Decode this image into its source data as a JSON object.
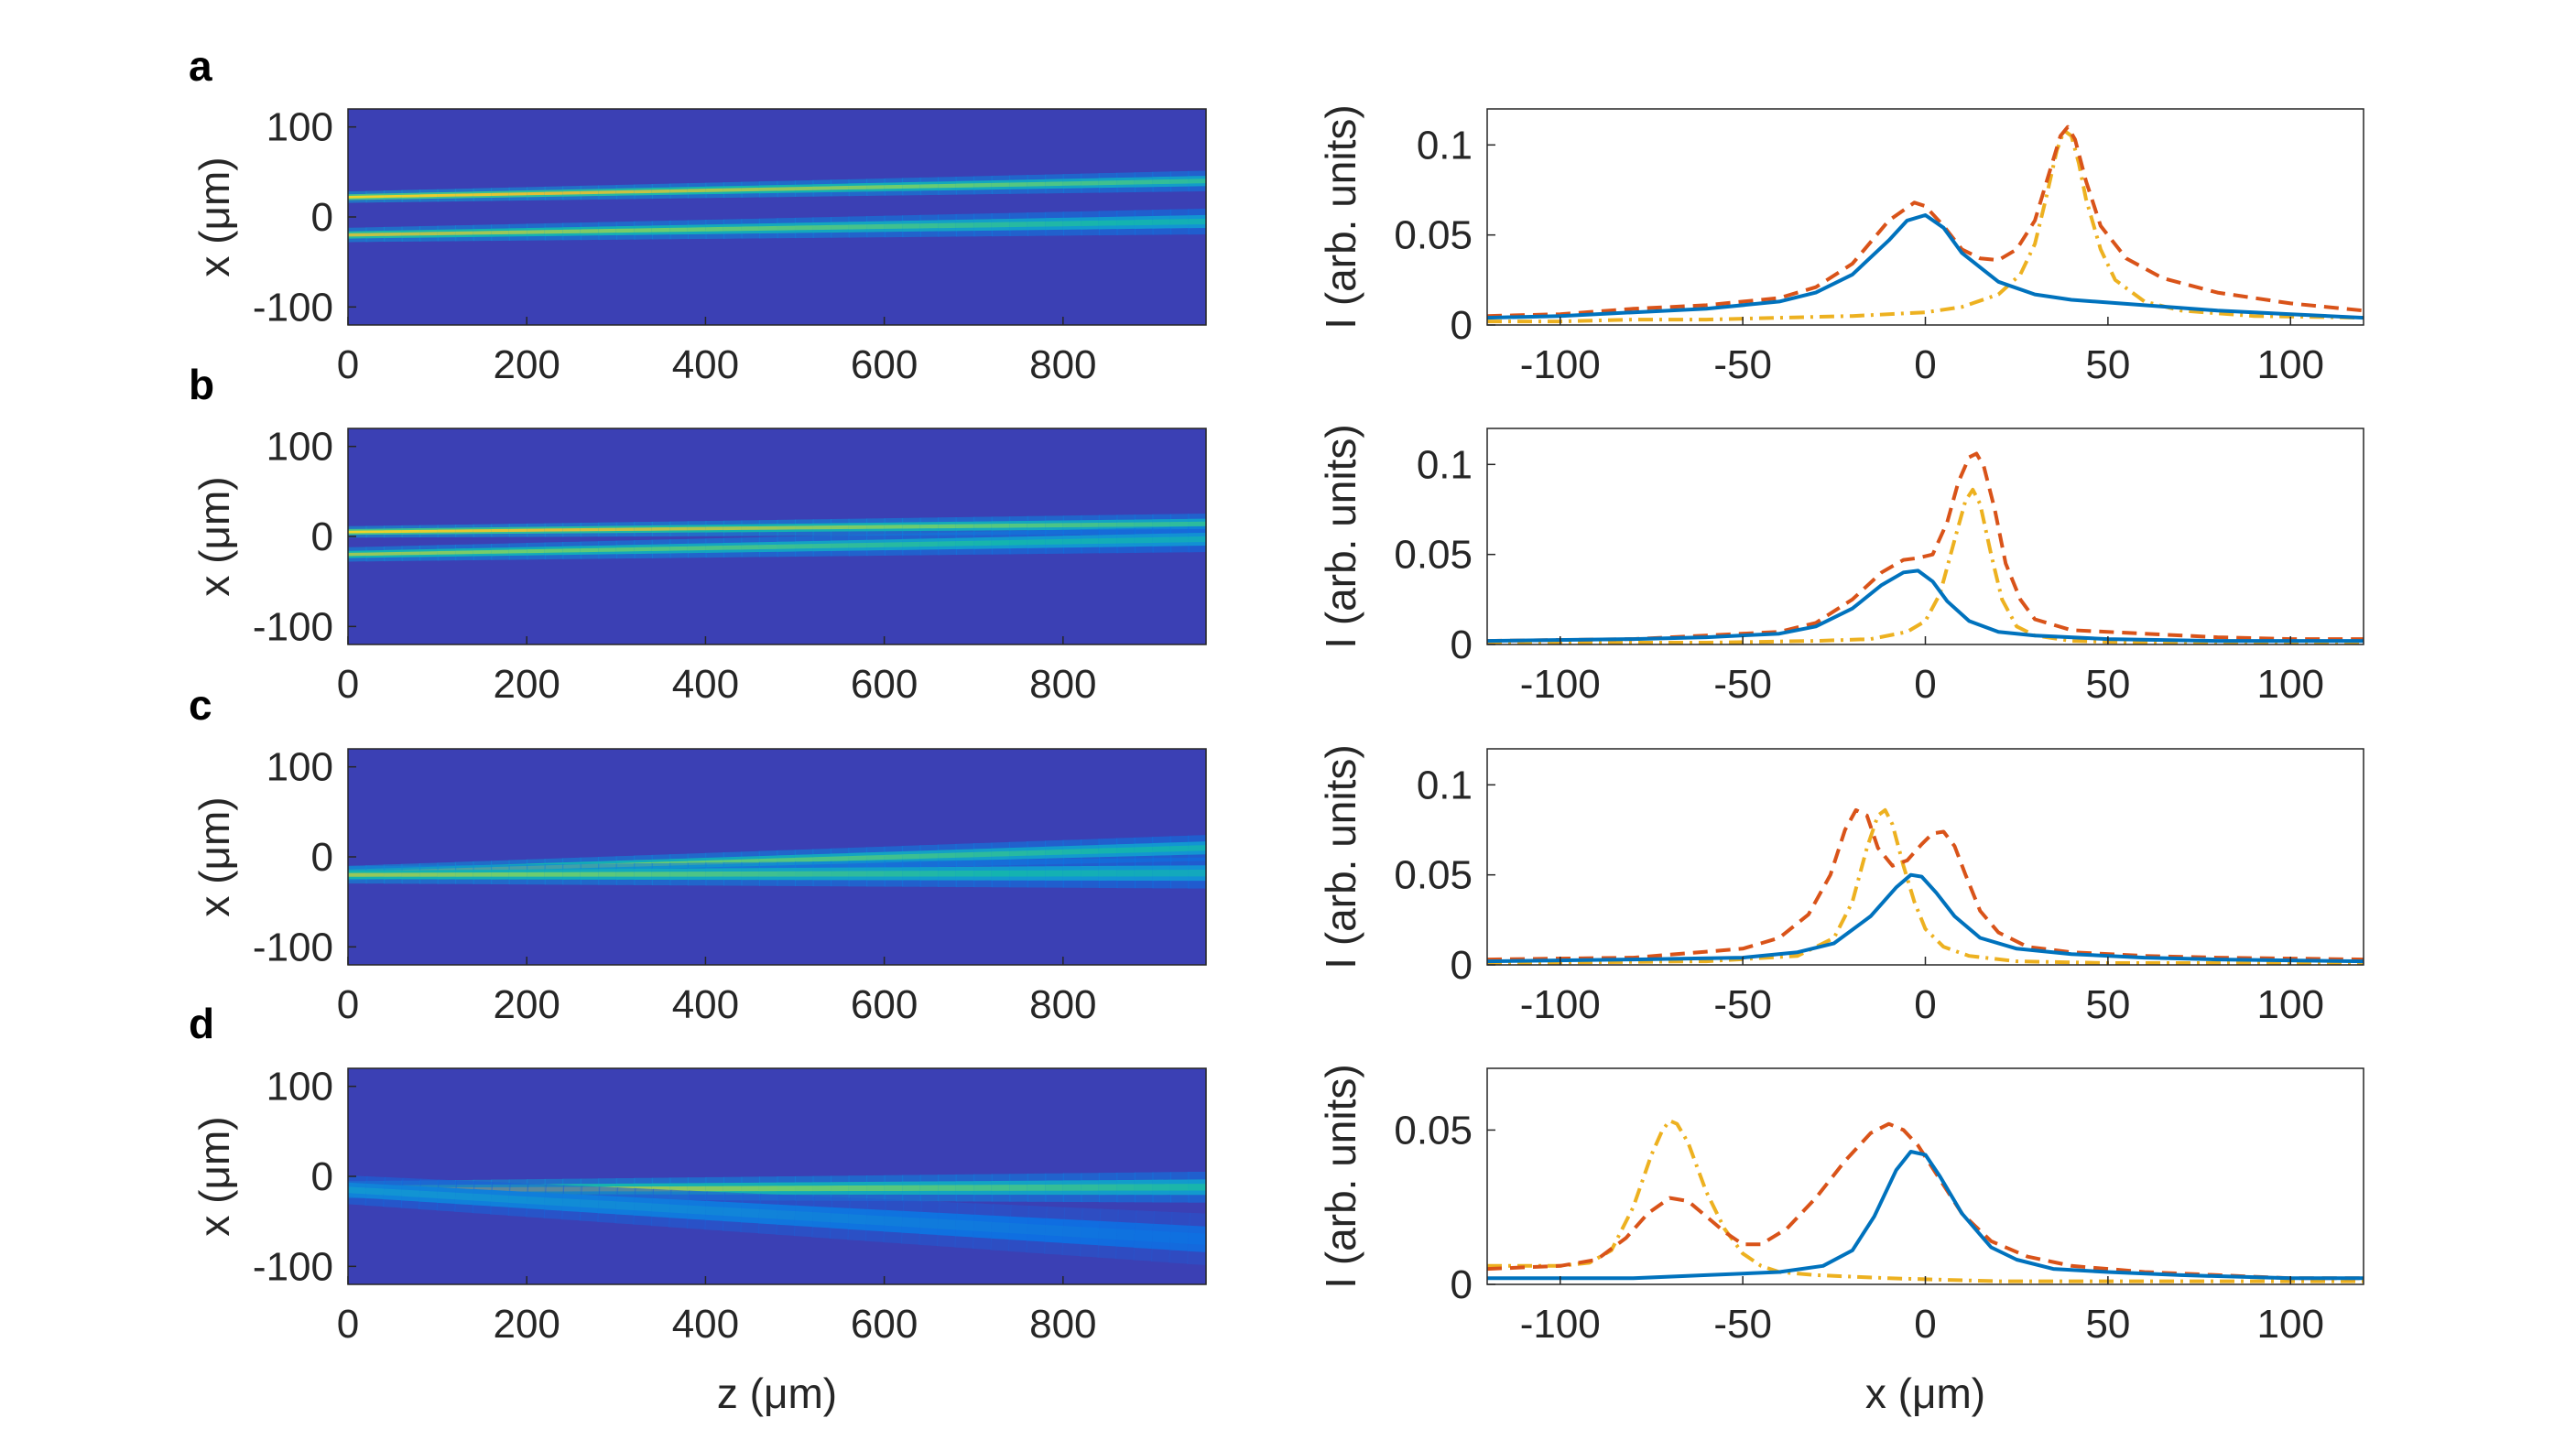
{
  "panels": [
    {
      "letter": "a",
      "heatmap": {
        "xlabel": "",
        "ylabel": "x (μm)",
        "xticks": [
          "0",
          "200",
          "400",
          "600",
          "800"
        ],
        "xtick_vals": [
          0,
          200,
          400,
          600,
          800
        ],
        "yticks": [
          "100",
          "0",
          "-100"
        ],
        "ytick_vals": [
          100,
          0,
          -100
        ],
        "xlim": [
          0,
          960
        ],
        "ylim": [
          -120,
          120
        ],
        "beams": [
          {
            "x_start": 22,
            "x_end": 40,
            "width": 4,
            "peak": 0.95
          },
          {
            "x_start": -20,
            "x_end": -5,
            "width": 5,
            "peak": 0.85
          }
        ]
      },
      "profile": {
        "xlabel": "",
        "ylabel": "I (arb. units)",
        "xticks": [
          "-100",
          "-50",
          "0",
          "50",
          "100"
        ],
        "xtick_vals": [
          -100,
          -50,
          0,
          50,
          100
        ],
        "yticks": [
          "0",
          "0.05",
          "0.1"
        ],
        "ytick_vals": [
          0,
          0.05,
          0.1
        ],
        "xlim": [
          -120,
          120
        ],
        "ylim": [
          0,
          0.12
        ]
      }
    },
    {
      "letter": "b",
      "heatmap": {
        "xlabel": "",
        "ylabel": "x (μm)",
        "xticks": [
          "0",
          "200",
          "400",
          "600",
          "800"
        ],
        "xtick_vals": [
          0,
          200,
          400,
          600,
          800
        ],
        "yticks": [
          "100",
          "0",
          "-100"
        ],
        "ytick_vals": [
          100,
          0,
          -100
        ],
        "xlim": [
          0,
          960
        ],
        "ylim": [
          -120,
          120
        ],
        "beams": [
          {
            "x_start": 5,
            "x_end": 14,
            "width": 4,
            "peak": 0.95
          },
          {
            "x_start": -20,
            "x_end": -3,
            "width": 5,
            "peak": 0.8
          }
        ]
      },
      "profile": {
        "xlabel": "",
        "ylabel": "I (arb. units)",
        "xticks": [
          "-100",
          "-50",
          "0",
          "50",
          "100"
        ],
        "xtick_vals": [
          -100,
          -50,
          0,
          50,
          100
        ],
        "yticks": [
          "0",
          "0.05",
          "0.1"
        ],
        "ytick_vals": [
          0,
          0.05,
          0.1
        ],
        "xlim": [
          -120,
          120
        ],
        "ylim": [
          0,
          0.12
        ]
      }
    },
    {
      "letter": "c",
      "heatmap": {
        "xlabel": "",
        "ylabel": "x (μm)",
        "xticks": [
          "0",
          "200",
          "400",
          "600",
          "800"
        ],
        "xtick_vals": [
          0,
          200,
          400,
          600,
          800
        ],
        "yticks": [
          "100",
          "0",
          "-100"
        ],
        "ytick_vals": [
          100,
          0,
          -100
        ],
        "xlim": [
          0,
          960
        ],
        "ylim": [
          -120,
          120
        ],
        "beams": [
          {
            "x_start": -18,
            "x_end": 10,
            "width": 5,
            "peak": 0.85
          },
          {
            "x_start": -20,
            "x_end": -18,
            "width": 6,
            "peak": 0.8
          }
        ]
      },
      "profile": {
        "xlabel": "",
        "ylabel": "I (arb. units)",
        "xticks": [
          "-100",
          "-50",
          "0",
          "50",
          "100"
        ],
        "xtick_vals": [
          -100,
          -50,
          0,
          50,
          100
        ],
        "yticks": [
          "0",
          "0.05",
          "0.1"
        ],
        "ytick_vals": [
          0,
          0.05,
          0.1
        ],
        "xlim": [
          -120,
          120
        ],
        "ylim": [
          0,
          0.12
        ]
      }
    },
    {
      "letter": "d",
      "heatmap": {
        "xlabel": "z (μm)",
        "ylabel": "x (μm)",
        "xticks": [
          "0",
          "200",
          "400",
          "600",
          "800"
        ],
        "xtick_vals": [
          0,
          200,
          400,
          600,
          800
        ],
        "yticks": [
          "100",
          "0",
          "-100"
        ],
        "ytick_vals": [
          100,
          0,
          -100
        ],
        "xlim": [
          0,
          960
        ],
        "ylim": [
          -120,
          120
        ],
        "beams": [
          {
            "x_start": -15,
            "x_end": -12,
            "width": 6,
            "peak": 0.9
          },
          {
            "x_start": -15,
            "x_end": -70,
            "width": 10,
            "peak": 0.45
          }
        ]
      },
      "profile": {
        "xlabel": "x (μm)",
        "ylabel": "I (arb. units)",
        "xticks": [
          "-100",
          "-50",
          "0",
          "50",
          "100"
        ],
        "xtick_vals": [
          -100,
          -50,
          0,
          50,
          100
        ],
        "yticks": [
          "0",
          "0.05"
        ],
        "ytick_vals": [
          0,
          0.05
        ],
        "xlim": [
          -120,
          120
        ],
        "ylim": [
          0,
          0.07
        ]
      }
    }
  ],
  "colors": {
    "blue": "#0072BD",
    "orange": "#D95319",
    "yellow": "#EDB120",
    "heat_bg": "#3B40B4",
    "axis": "#262626"
  },
  "chart_data": [
    {
      "type": "line",
      "panel": "a",
      "xlim": [
        -120,
        120
      ],
      "ylim": [
        0,
        0.12
      ],
      "xlabel": "",
      "ylabel": "I (arb. units)",
      "series": [
        {
          "style": "solid",
          "color": "#0072BD",
          "x": [
            -120,
            -100,
            -80,
            -60,
            -40,
            -30,
            -20,
            -10,
            -5,
            0,
            5,
            10,
            20,
            30,
            40,
            60,
            80,
            100,
            120
          ],
          "y": [
            0.004,
            0.005,
            0.007,
            0.009,
            0.013,
            0.018,
            0.028,
            0.047,
            0.058,
            0.061,
            0.054,
            0.04,
            0.024,
            0.017,
            0.014,
            0.011,
            0.008,
            0.006,
            0.004
          ]
        },
        {
          "style": "dashed",
          "color": "#D95319",
          "x": [
            -120,
            -100,
            -80,
            -60,
            -40,
            -30,
            -20,
            -10,
            -3,
            0,
            5,
            10,
            15,
            20,
            25,
            30,
            34,
            37,
            39,
            41,
            44,
            48,
            55,
            65,
            80,
            100,
            120
          ],
          "y": [
            0.005,
            0.006,
            0.009,
            0.011,
            0.015,
            0.021,
            0.034,
            0.058,
            0.068,
            0.066,
            0.055,
            0.042,
            0.037,
            0.036,
            0.042,
            0.058,
            0.085,
            0.105,
            0.11,
            0.103,
            0.08,
            0.055,
            0.037,
            0.026,
            0.018,
            0.012,
            0.008
          ]
        },
        {
          "style": "dashdot",
          "color": "#EDB120",
          "x": [
            -120,
            -100,
            -80,
            -60,
            -40,
            -20,
            0,
            10,
            20,
            26,
            30,
            33,
            36,
            38,
            40,
            42,
            44,
            48,
            52,
            60,
            70,
            90,
            120
          ],
          "y": [
            0.002,
            0.002,
            0.003,
            0.003,
            0.004,
            0.005,
            0.007,
            0.01,
            0.017,
            0.028,
            0.045,
            0.07,
            0.097,
            0.108,
            0.105,
            0.09,
            0.07,
            0.042,
            0.025,
            0.013,
            0.008,
            0.005,
            0.004
          ]
        }
      ]
    },
    {
      "type": "line",
      "panel": "b",
      "xlim": [
        -120,
        120
      ],
      "ylim": [
        0,
        0.12
      ],
      "xlabel": "",
      "ylabel": "I (arb. units)",
      "series": [
        {
          "style": "solid",
          "color": "#0072BD",
          "x": [
            -120,
            -80,
            -60,
            -40,
            -30,
            -20,
            -12,
            -6,
            -2,
            2,
            6,
            12,
            20,
            30,
            50,
            80,
            120
          ],
          "y": [
            0.002,
            0.003,
            0.004,
            0.006,
            0.01,
            0.02,
            0.033,
            0.04,
            0.041,
            0.035,
            0.024,
            0.013,
            0.007,
            0.005,
            0.003,
            0.002,
            0.002
          ]
        },
        {
          "style": "dashed",
          "color": "#D95319",
          "x": [
            -120,
            -80,
            -60,
            -40,
            -30,
            -20,
            -12,
            -6,
            -2,
            2,
            6,
            9,
            12,
            14,
            16,
            19,
            22,
            26,
            30,
            40,
            60,
            80,
            100,
            120
          ],
          "y": [
            0.002,
            0.003,
            0.005,
            0.007,
            0.012,
            0.025,
            0.04,
            0.047,
            0.048,
            0.05,
            0.068,
            0.09,
            0.104,
            0.106,
            0.099,
            0.075,
            0.045,
            0.025,
            0.014,
            0.008,
            0.006,
            0.004,
            0.003,
            0.003
          ]
        },
        {
          "style": "dashdot",
          "color": "#EDB120",
          "x": [
            -120,
            -60,
            -30,
            -15,
            -5,
            0,
            4,
            8,
            11,
            13,
            15,
            18,
            21,
            25,
            30,
            40,
            60,
            120
          ],
          "y": [
            0.001,
            0.001,
            0.002,
            0.003,
            0.007,
            0.013,
            0.028,
            0.058,
            0.08,
            0.086,
            0.078,
            0.05,
            0.025,
            0.01,
            0.005,
            0.002,
            0.001,
            0.001
          ]
        }
      ]
    },
    {
      "type": "line",
      "panel": "c",
      "xlim": [
        -120,
        120
      ],
      "ylim": [
        0,
        0.12
      ],
      "xlabel": "",
      "ylabel": "I (arb. units)",
      "series": [
        {
          "style": "solid",
          "color": "#0072BD",
          "x": [
            -120,
            -80,
            -50,
            -35,
            -25,
            -15,
            -8,
            -4,
            -1,
            3,
            8,
            15,
            25,
            40,
            60,
            80,
            120
          ],
          "y": [
            0.002,
            0.003,
            0.004,
            0.007,
            0.012,
            0.027,
            0.043,
            0.05,
            0.049,
            0.04,
            0.027,
            0.015,
            0.009,
            0.006,
            0.004,
            0.003,
            0.002
          ]
        },
        {
          "style": "dashed",
          "color": "#D95319",
          "x": [
            -120,
            -80,
            -50,
            -40,
            -32,
            -26,
            -22,
            -19,
            -16,
            -13,
            -9,
            -5,
            -1,
            2,
            5,
            8,
            11,
            15,
            20,
            28,
            40,
            60,
            80,
            120
          ],
          "y": [
            0.003,
            0.004,
            0.009,
            0.015,
            0.028,
            0.05,
            0.075,
            0.086,
            0.083,
            0.065,
            0.055,
            0.058,
            0.067,
            0.073,
            0.074,
            0.066,
            0.05,
            0.03,
            0.018,
            0.01,
            0.007,
            0.005,
            0.004,
            0.003
          ]
        },
        {
          "style": "dashdot",
          "color": "#EDB120",
          "x": [
            -120,
            -60,
            -35,
            -25,
            -20,
            -16,
            -13,
            -11,
            -9,
            -6,
            -3,
            0,
            5,
            12,
            25,
            50,
            120
          ],
          "y": [
            0.001,
            0.002,
            0.005,
            0.015,
            0.035,
            0.065,
            0.083,
            0.086,
            0.078,
            0.055,
            0.035,
            0.02,
            0.01,
            0.005,
            0.002,
            0.001,
            0.001
          ]
        }
      ]
    },
    {
      "type": "line",
      "panel": "d",
      "xlim": [
        -120,
        120
      ],
      "ylim": [
        0,
        0.07
      ],
      "xlabel": "x (μm)",
      "ylabel": "I (arb. units)",
      "series": [
        {
          "style": "solid",
          "color": "#0072BD",
          "x": [
            -120,
            -100,
            -80,
            -60,
            -40,
            -28,
            -20,
            -14,
            -8,
            -4,
            0,
            4,
            10,
            18,
            25,
            35,
            50,
            70,
            100,
            120
          ],
          "y": [
            0.002,
            0.002,
            0.002,
            0.003,
            0.004,
            0.006,
            0.011,
            0.022,
            0.037,
            0.043,
            0.042,
            0.035,
            0.023,
            0.012,
            0.008,
            0.005,
            0.004,
            0.003,
            0.002,
            0.002
          ]
        },
        {
          "style": "dashed",
          "color": "#D95319",
          "x": [
            -120,
            -100,
            -90,
            -82,
            -76,
            -70,
            -65,
            -60,
            -55,
            -50,
            -45,
            -38,
            -30,
            -22,
            -15,
            -10,
            -6,
            -2,
            4,
            10,
            18,
            28,
            40,
            60,
            80,
            100,
            120
          ],
          "y": [
            0.005,
            0.006,
            0.008,
            0.015,
            0.023,
            0.028,
            0.027,
            0.022,
            0.017,
            0.013,
            0.013,
            0.018,
            0.028,
            0.04,
            0.049,
            0.052,
            0.05,
            0.045,
            0.034,
            0.023,
            0.014,
            0.009,
            0.006,
            0.004,
            0.003,
            0.002,
            0.002
          ]
        },
        {
          "style": "dashdot",
          "color": "#EDB120",
          "x": [
            -120,
            -100,
            -92,
            -86,
            -80,
            -75,
            -72,
            -70,
            -68,
            -65,
            -60,
            -55,
            -50,
            -45,
            -40,
            -30,
            -10,
            20,
            60,
            120
          ],
          "y": [
            0.006,
            0.006,
            0.007,
            0.011,
            0.025,
            0.042,
            0.05,
            0.053,
            0.052,
            0.046,
            0.03,
            0.018,
            0.01,
            0.006,
            0.004,
            0.003,
            0.002,
            0.001,
            0.001,
            0.001
          ]
        }
      ]
    }
  ]
}
